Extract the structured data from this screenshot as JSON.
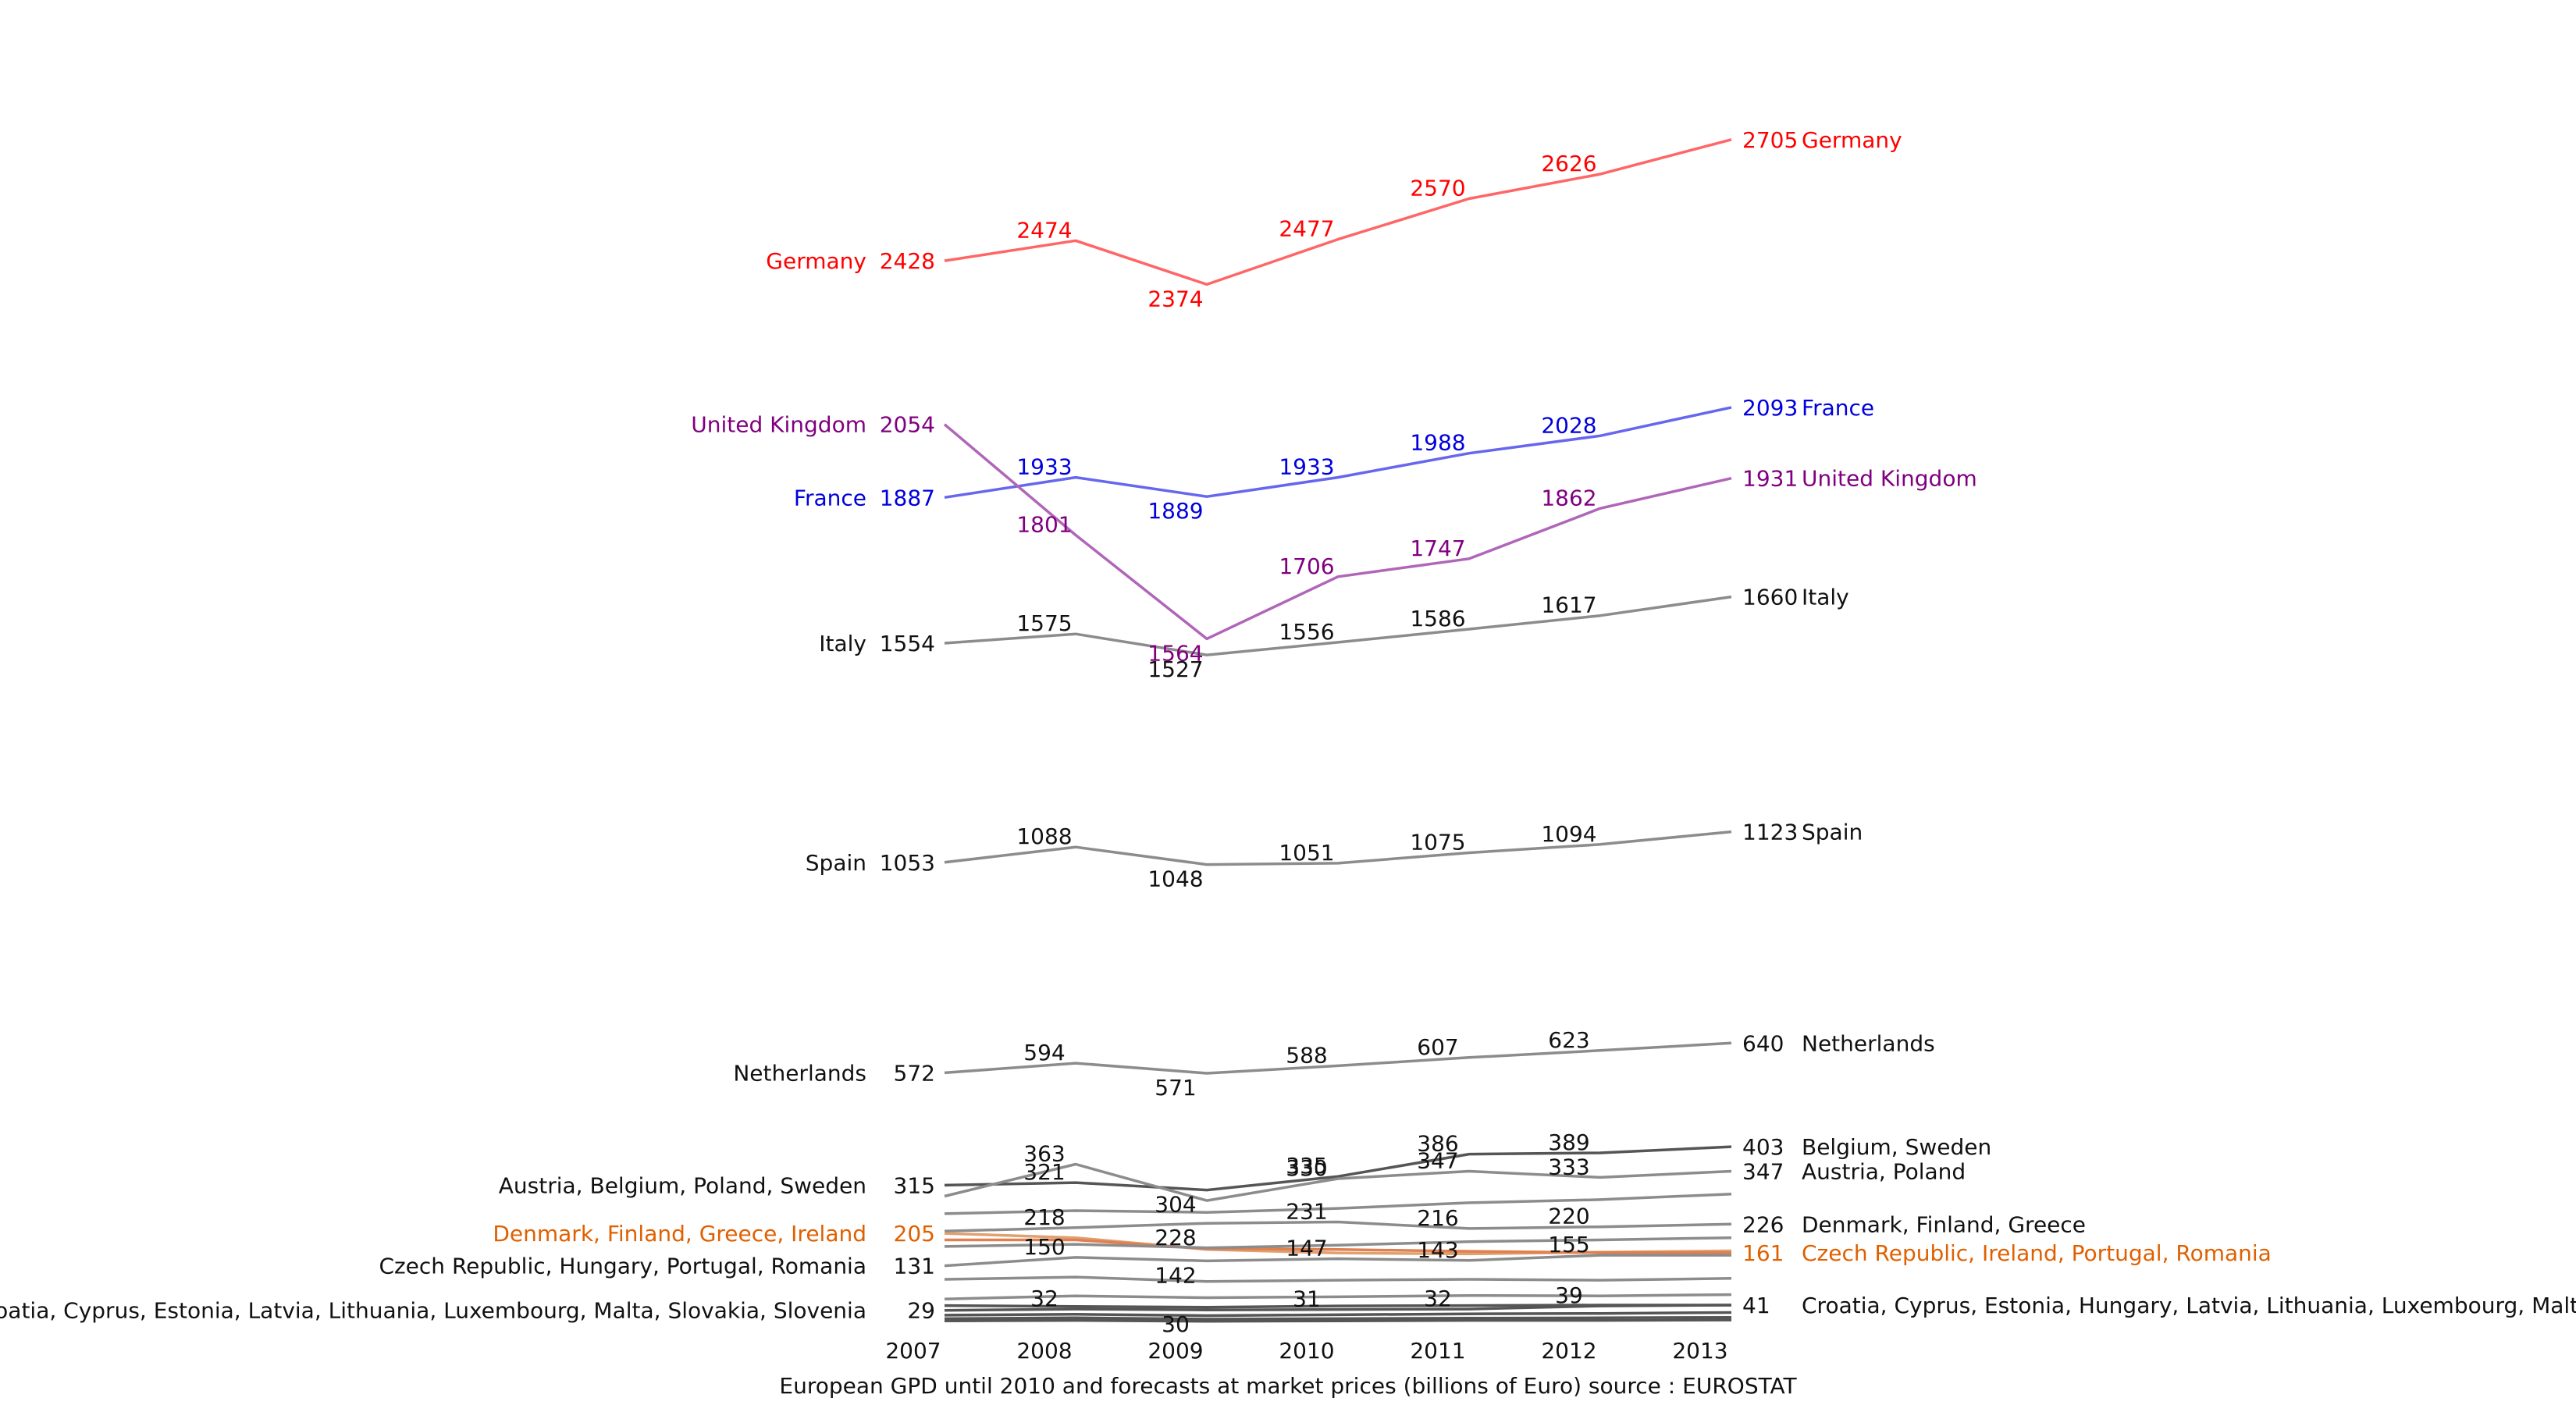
{
  "chart_data": {
    "type": "line",
    "title": "",
    "caption": "European GPD until 2010 and forecasts at market prices (billions of Euro) source : EUROSTAT",
    "x": [
      "2007",
      "2008",
      "2009",
      "2010",
      "2011",
      "2012",
      "2013"
    ],
    "ylim": [
      0,
      2800
    ],
    "grid": false,
    "legend": "labels at line ends",
    "series": [
      {
        "name": "Germany",
        "left_label": "Germany",
        "right_label": "Germany",
        "color": "#ff0000",
        "line_color": "#ff6666",
        "values": [
          2428,
          2474,
          2374,
          2477,
          2570,
          2626,
          2705
        ]
      },
      {
        "name": "France",
        "left_label": "France",
        "right_label": "France",
        "color": "#0000dd",
        "line_color": "#6666ee",
        "values": [
          1887,
          1933,
          1889,
          1933,
          1988,
          2028,
          2093
        ]
      },
      {
        "name": "United Kingdom",
        "left_label": "United Kingdom",
        "right_label": "United Kingdom",
        "color": "#800080",
        "line_color": "#b066b8",
        "values": [
          2054,
          1801,
          1564,
          1706,
          1747,
          1862,
          1931
        ]
      },
      {
        "name": "Italy",
        "left_label": "Italy",
        "right_label": "Italy",
        "color": "#111111",
        "line_color": "#8c8c8c",
        "values": [
          1554,
          1575,
          1527,
          1556,
          1586,
          1617,
          1660
        ]
      },
      {
        "name": "Spain",
        "left_label": "Spain",
        "right_label": "Spain",
        "color": "#111111",
        "line_color": "#8c8c8c",
        "values": [
          1053,
          1088,
          1048,
          1051,
          1075,
          1094,
          1123
        ]
      },
      {
        "name": "Netherlands",
        "left_label": "Netherlands",
        "right_label": "Netherlands",
        "color": "#111111",
        "line_color": "#8c8c8c",
        "values": [
          572,
          594,
          571,
          588,
          607,
          623,
          640
        ]
      },
      {
        "name": "Belgium, Sweden",
        "left_label": "Austria, Belgium, Poland, Sweden",
        "right_label": "Belgium, Sweden",
        "color": "#111111",
        "line_color": "#555555",
        "values": [
          315,
          321,
          304,
          335,
          386,
          389,
          403
        ]
      },
      {
        "name": "Austria, Poland",
        "left_label": "",
        "right_label": "Austria, Poland",
        "color": "#111111",
        "line_color": "#8c8c8c",
        "values": [
          290,
          363,
          280,
          330,
          347,
          333,
          347
        ]
      },
      {
        "name": "",
        "left_label": "",
        "right_label": "",
        "color": "#111111",
        "line_color": "#8c8c8c",
        "values": [
          250,
          257,
          253,
          262,
          275,
          282,
          295
        ]
      },
      {
        "name": "Denmark, Finland, Greece",
        "left_label": "",
        "right_label": "Denmark, Finland, Greece",
        "color": "#111111",
        "line_color": "#8c8c8c",
        "values": [
          210,
          218,
          228,
          231,
          216,
          220,
          226
        ]
      },
      {
        "name": "",
        "left_label": "Denmark, Finland, Greece, Ireland",
        "right_label": "",
        "color": "#e06000",
        "line_color": "#e0a070",
        "values": [
          205,
          195,
          168,
          160,
          158,
          162,
          165
        ]
      },
      {
        "name": "Czech Republic, Ireland, Portugal, Romania",
        "left_label": "",
        "right_label": "Czech Republic, Ireland, Portugal, Romania",
        "color": "#e06000",
        "line_color": "#e08050",
        "values": [
          190,
          190,
          170,
          168,
          164,
          161,
          161
        ]
      },
      {
        "name": "",
        "left_label": "",
        "right_label": "",
        "color": "#111111",
        "line_color": "#8c8c8c",
        "values": [
          175,
          180,
          172,
          178,
          186,
          190,
          195
        ]
      },
      {
        "name": "",
        "left_label": "Czech Republic, Hungary, Portugal, Romania",
        "right_label": "",
        "color": "#111111",
        "line_color": "#8c8c8c",
        "values": [
          131,
          150,
          142,
          147,
          143,
          155,
          155
        ]
      },
      {
        "name": "",
        "left_label": "",
        "right_label": "",
        "color": "#111111",
        "line_color": "#8c8c8c",
        "values": [
          100,
          105,
          95,
          98,
          100,
          98,
          102
        ]
      },
      {
        "name": "",
        "left_label": "",
        "right_label": "",
        "color": "#111111",
        "line_color": "#8c8c8c",
        "values": [
          55,
          62,
          58,
          60,
          63,
          62,
          65
        ]
      },
      {
        "name": "",
        "left_label": "Bulgaria, Croatia, Cyprus, Estonia, Latvia, Lithuania, Luxembourg, Malta, Slovakia, Slovenia",
        "right_label": "",
        "color": "#111111",
        "line_color": "#555555",
        "values": [
          29,
          32,
          30,
          31,
          32,
          39,
          41
        ]
      },
      {
        "name": "Croatia, Cyprus, Estonia, Hungary, Latvia, Lithuania, Luxembourg, Malta, Slovakia",
        "left_label": "",
        "right_label": "Croatia, Cyprus, Estonia, Hungary, Latvia, Lithuania, Luxembourg, Malta, Slovakia",
        "color": "#111111",
        "line_color": "#555555",
        "values": [
          40,
          38,
          36,
          39,
          40,
          41,
          41
        ]
      },
      {
        "name": "",
        "left_label": "",
        "right_label": "",
        "color": "#111111",
        "line_color": "#555555",
        "values": [
          18,
          20,
          17,
          19,
          21,
          22,
          24
        ]
      },
      {
        "name": "",
        "left_label": "",
        "right_label": "",
        "color": "#111111",
        "line_color": "#555555",
        "values": [
          10,
          12,
          9,
          10,
          11,
          12,
          13
        ]
      },
      {
        "name": "",
        "left_label": "",
        "right_label": "",
        "color": "#111111",
        "line_color": "#555555",
        "values": [
          5,
          6,
          4,
          5,
          6,
          6,
          7
        ]
      }
    ],
    "value_labels": [
      {
        "series": 0,
        "show": [
          true,
          true,
          true,
          true,
          true,
          true,
          true
        ]
      },
      {
        "series": 1,
        "show": [
          true,
          true,
          true,
          true,
          true,
          true,
          true
        ]
      },
      {
        "series": 2,
        "show": [
          true,
          true,
          true,
          true,
          true,
          true,
          true
        ]
      },
      {
        "series": 3,
        "show": [
          true,
          true,
          true,
          true,
          true,
          true,
          true
        ]
      },
      {
        "series": 4,
        "show": [
          true,
          true,
          true,
          true,
          true,
          true,
          true
        ]
      },
      {
        "series": 5,
        "show": [
          true,
          true,
          true,
          true,
          true,
          true,
          true
        ]
      },
      {
        "series": 6,
        "show": [
          true,
          true,
          true,
          true,
          true,
          true,
          true
        ]
      },
      {
        "series": 7,
        "show": [
          false,
          true,
          false,
          true,
          true,
          true,
          true
        ]
      },
      {
        "series": 9,
        "show": [
          false,
          true,
          true,
          true,
          true,
          true,
          true
        ]
      },
      {
        "series": 10,
        "show": [
          true,
          false,
          false,
          false,
          false,
          false,
          false
        ]
      },
      {
        "series": 11,
        "show": [
          false,
          false,
          false,
          false,
          false,
          false,
          true
        ]
      },
      {
        "series": 13,
        "show": [
          true,
          true,
          true,
          true,
          true,
          true,
          false
        ]
      },
      {
        "series": 16,
        "show": [
          true,
          true,
          true,
          true,
          true,
          true,
          false
        ]
      },
      {
        "series": 17,
        "show": [
          false,
          false,
          false,
          false,
          false,
          false,
          true
        ]
      }
    ]
  }
}
